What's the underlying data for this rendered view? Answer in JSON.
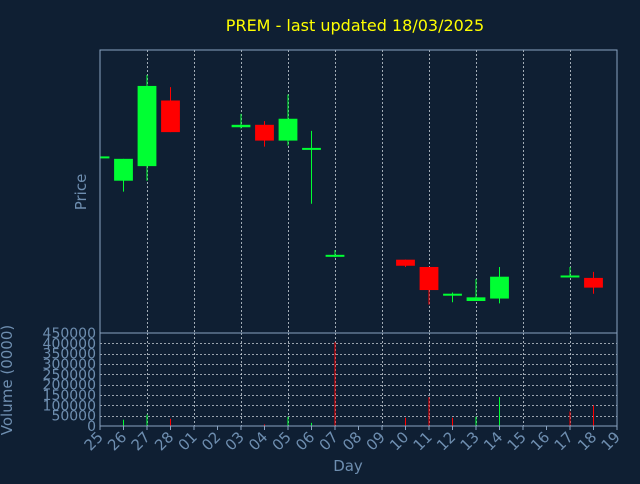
{
  "chart_data": {
    "type": "candlestick",
    "title": "PREM - last updated 18/03/2025",
    "ylabel": "Price",
    "volume_ylabel": "Volume (0000)",
    "xlabel": "Day",
    "x_ticks": [
      "25",
      "26",
      "27",
      "28",
      "01",
      "02",
      "03",
      "04",
      "05",
      "06",
      "07",
      "08",
      "09",
      "10",
      "11",
      "12",
      "13",
      "14",
      "15",
      "16",
      "17",
      "18",
      "19"
    ],
    "x_range": [
      0,
      22
    ],
    "grid_vertical_at": [
      2,
      4,
      6,
      8,
      10,
      12,
      14,
      16,
      18,
      20
    ],
    "price_range": [
      0,
      100
    ],
    "price_series": [
      {
        "day": "25",
        "open": 66.5,
        "close": 66.5,
        "high": 66.5,
        "low": 66.5
      },
      {
        "day": "26",
        "open": 56.5,
        "close": 65.5,
        "high": 65.5,
        "low": 52
      },
      {
        "day": "27",
        "open": 62.5,
        "close": 95.5,
        "high": 100,
        "low": 56.5
      },
      {
        "day": "28",
        "open": 89.5,
        "close": 76.5,
        "high": 95,
        "low": 76.5
      },
      {
        "day": "03",
        "open": 78.5,
        "close": 79.5,
        "high": 84,
        "low": 78
      },
      {
        "day": "04",
        "open": 79.5,
        "close": 73,
        "high": 81,
        "low": 70.5
      },
      {
        "day": "05",
        "open": 73,
        "close": 82,
        "high": 92,
        "low": 71
      },
      {
        "day": "06",
        "open": 70,
        "close": 70,
        "high": 77,
        "low": 47
      },
      {
        "day": "07",
        "open": 26,
        "close": 26,
        "high": 28,
        "low": 25
      },
      {
        "day": "10",
        "open": 24,
        "close": 21.5,
        "high": 24,
        "low": 21
      },
      {
        "day": "11",
        "open": 21,
        "close": 11.5,
        "high": 21,
        "low": 5.5
      },
      {
        "day": "12",
        "open": 10,
        "close": 10,
        "high": 10.5,
        "low": 6.5
      },
      {
        "day": "13",
        "open": 7,
        "close": 8.5,
        "high": 16,
        "low": 7
      },
      {
        "day": "14",
        "open": 8,
        "close": 17,
        "high": 21,
        "low": 6
      },
      {
        "day": "17",
        "open": 17.5,
        "close": 17.5,
        "high": 21,
        "low": 17
      },
      {
        "day": "18",
        "open": 16.5,
        "close": 12.5,
        "high": 19,
        "low": 10
      }
    ],
    "volume_range": [
      0,
      450000
    ],
    "volume_ticks": [
      "0",
      "50000",
      "100000",
      "150000",
      "200000",
      "250000",
      "300000",
      "350000",
      "400000",
      "450000"
    ],
    "volume_series": [
      {
        "day": "26",
        "volume": 30000,
        "dir": "up"
      },
      {
        "day": "27",
        "volume": 55000,
        "dir": "up"
      },
      {
        "day": "28",
        "volume": 35000,
        "dir": "down"
      },
      {
        "day": "04",
        "volume": 8000,
        "dir": "down"
      },
      {
        "day": "05",
        "volume": 45000,
        "dir": "up"
      },
      {
        "day": "06",
        "volume": 15000,
        "dir": "up"
      },
      {
        "day": "07",
        "volume": 405000,
        "dir": "down"
      },
      {
        "day": "10",
        "volume": 40000,
        "dir": "down"
      },
      {
        "day": "11",
        "volume": 140000,
        "dir": "down"
      },
      {
        "day": "12",
        "volume": 40000,
        "dir": "down"
      },
      {
        "day": "13",
        "volume": 45000,
        "dir": "up"
      },
      {
        "day": "14",
        "volume": 140000,
        "dir": "up"
      },
      {
        "day": "17",
        "volume": 70000,
        "dir": "down"
      },
      {
        "day": "18",
        "volume": 100000,
        "dir": "down"
      }
    ],
    "colors": {
      "background": "#0f1f33",
      "up": "#00ff33",
      "down": "#ff0000",
      "axis_text": "#6e8eb0",
      "title": "#ffff00",
      "frame": "#8aa3c0",
      "grid": "#c8d0d8"
    }
  }
}
